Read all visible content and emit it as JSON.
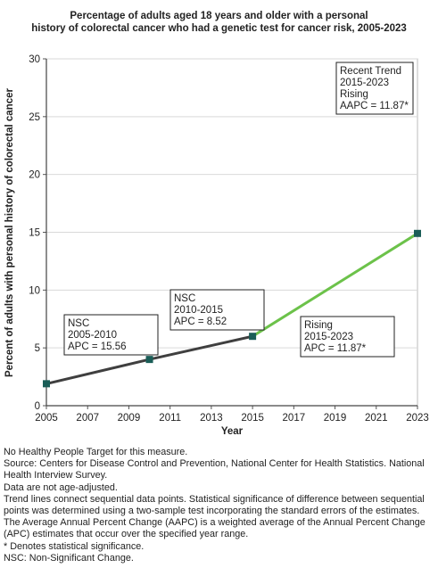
{
  "chart_data": {
    "type": "line",
    "title_lines": [
      "Percentage of adults aged 18 years and older with a personal",
      "history of colorectal cancer  who had a genetic test for cancer risk, 2005-2023"
    ],
    "xlabel": "Year",
    "ylabel": "Percent of adults with personal history of colorectal cancer",
    "xlim": [
      2005,
      2023
    ],
    "ylim": [
      0,
      30
    ],
    "x_ticks": [
      "2005",
      "2007",
      "2009",
      "2011",
      "2013",
      "2015",
      "2017",
      "2019",
      "2021",
      "2023"
    ],
    "y_ticks": [
      "0",
      "5",
      "10",
      "15",
      "20",
      "25",
      "30"
    ],
    "points": [
      {
        "x": 2005,
        "y": 1.9
      },
      {
        "x": 2010,
        "y": 4.0
      },
      {
        "x": 2015,
        "y": 6.0
      },
      {
        "x": 2023,
        "y": 14.9
      }
    ],
    "segments": [
      {
        "from": 2005,
        "to": 2015,
        "color": "#3f3f3f",
        "trend": "NSC"
      },
      {
        "from": 2015,
        "to": 2023,
        "color": "#6cc24a",
        "trend": "Rising"
      }
    ],
    "marker_color": "#1a5d57",
    "grid": "horizontal",
    "annotations": [
      {
        "lines": [
          "NSC",
          "2005-2010",
          "APC = 15.56"
        ]
      },
      {
        "lines": [
          "NSC",
          "2010-2015",
          "APC =  8.52"
        ]
      },
      {
        "lines": [
          "Rising",
          "2015-2023",
          "APC = 11.87*"
        ]
      },
      {
        "lines": [
          "Recent Trend",
          "2015-2023",
          "Rising",
          "AAPC = 11.87*"
        ]
      }
    ]
  },
  "footnotes": [
    "No Healthy People Target for this measure.",
    "Source: Centers for Disease Control and Prevention, National Center for Health Statistics. National Health Interview Survey.",
    "Data are not age-adjusted.",
    "Trend lines connect sequential data points. Statistical significance of difference between sequential points was determined using a two-sample test incorporating the standard errors of the estimates.",
    "The Average Annual Percent Change (AAPC) is a weighted average of the Annual Percent Change (APC) estimates that occur over the specified year range.",
    "* Denotes statistical significance.",
    "NSC: Non-Significant Change."
  ]
}
